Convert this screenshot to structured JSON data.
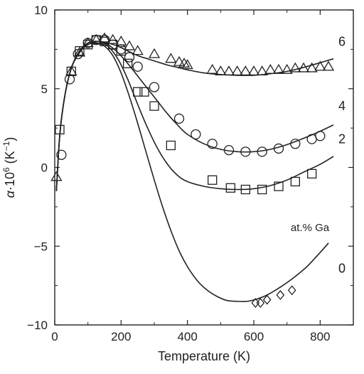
{
  "chart_data": {
    "type": "scatter",
    "xlabel": "Temperature (K)",
    "ylabel_parts": {
      "alpha": "α",
      "dot": "·10",
      "exp": "6",
      "unit": " (K",
      "unit_exp": "−1",
      "close": ")"
    },
    "xlim": [
      0,
      900
    ],
    "ylim": [
      -10,
      10
    ],
    "x_ticks": [
      0,
      200,
      400,
      600,
      800
    ],
    "y_ticks": [
      -10,
      -5,
      0,
      5,
      10
    ],
    "x_tick_labels": [
      "0",
      "200",
      "400",
      "600",
      "800"
    ],
    "y_tick_labels": [
      "−10",
      "−5",
      "0",
      "5",
      "10"
    ],
    "legend_title": "at.% Ga",
    "series": [
      {
        "name": "0",
        "marker": "diamond",
        "points": [
          [
            605,
            -8.6
          ],
          [
            620,
            -8.6
          ],
          [
            640,
            -8.4
          ],
          [
            680,
            -8.1
          ],
          [
            715,
            -7.8
          ]
        ],
        "fit": [
          [
            5,
            -1.5
          ],
          [
            15,
            2.0
          ],
          [
            30,
            4.5
          ],
          [
            50,
            6.3
          ],
          [
            75,
            7.3
          ],
          [
            100,
            7.8
          ],
          [
            125,
            7.9
          ],
          [
            150,
            7.7
          ],
          [
            175,
            7.1
          ],
          [
            200,
            6.0
          ],
          [
            225,
            4.5
          ],
          [
            250,
            2.8
          ],
          [
            275,
            1.0
          ],
          [
            300,
            -0.8
          ],
          [
            325,
            -2.5
          ],
          [
            350,
            -4.0
          ],
          [
            375,
            -5.3
          ],
          [
            400,
            -6.3
          ],
          [
            430,
            -7.2
          ],
          [
            460,
            -7.8
          ],
          [
            490,
            -8.2
          ],
          [
            520,
            -8.45
          ],
          [
            550,
            -8.5
          ],
          [
            580,
            -8.5
          ],
          [
            610,
            -8.35
          ],
          [
            640,
            -8.1
          ],
          [
            680,
            -7.6
          ],
          [
            720,
            -7.0
          ],
          [
            760,
            -6.3
          ],
          [
            800,
            -5.4
          ],
          [
            825,
            -4.8
          ]
        ]
      },
      {
        "name": "2",
        "marker": "square",
        "points": [
          [
            15,
            2.4
          ],
          [
            50,
            6.1
          ],
          [
            75,
            7.4
          ],
          [
            100,
            7.8
          ],
          [
            125,
            8.1
          ],
          [
            150,
            8.0
          ],
          [
            175,
            7.8
          ],
          [
            200,
            7.4
          ],
          [
            220,
            6.6
          ],
          [
            250,
            4.8
          ],
          [
            270,
            4.8
          ],
          [
            300,
            3.9
          ],
          [
            350,
            1.4
          ],
          [
            475,
            -0.8
          ],
          [
            530,
            -1.3
          ],
          [
            575,
            -1.4
          ],
          [
            625,
            -1.4
          ],
          [
            675,
            -1.2
          ],
          [
            725,
            -0.9
          ],
          [
            775,
            -0.4
          ]
        ],
        "fit": [
          [
            5,
            -1.5
          ],
          [
            15,
            2.0
          ],
          [
            30,
            4.5
          ],
          [
            50,
            6.3
          ],
          [
            75,
            7.4
          ],
          [
            100,
            7.9
          ],
          [
            130,
            8.0
          ],
          [
            160,
            7.7
          ],
          [
            190,
            6.9
          ],
          [
            220,
            5.6
          ],
          [
            250,
            4.0
          ],
          [
            280,
            2.5
          ],
          [
            310,
            1.2
          ],
          [
            340,
            0.2
          ],
          [
            370,
            -0.5
          ],
          [
            400,
            -0.9
          ],
          [
            450,
            -1.2
          ],
          [
            500,
            -1.35
          ],
          [
            550,
            -1.4
          ],
          [
            600,
            -1.35
          ],
          [
            650,
            -1.15
          ],
          [
            700,
            -0.8
          ],
          [
            750,
            -0.3
          ],
          [
            800,
            0.2
          ],
          [
            840,
            0.7
          ]
        ]
      },
      {
        "name": "4",
        "marker": "circle",
        "points": [
          [
            20,
            0.8
          ],
          [
            45,
            5.6
          ],
          [
            70,
            7.2
          ],
          [
            100,
            7.9
          ],
          [
            125,
            8.1
          ],
          [
            150,
            8.1
          ],
          [
            175,
            7.8
          ],
          [
            200,
            7.5
          ],
          [
            225,
            7.0
          ],
          [
            250,
            6.4
          ],
          [
            300,
            5.1
          ],
          [
            375,
            3.1
          ],
          [
            425,
            2.1
          ],
          [
            475,
            1.5
          ],
          [
            525,
            1.1
          ],
          [
            575,
            1.0
          ],
          [
            625,
            1.0
          ],
          [
            675,
            1.2
          ],
          [
            725,
            1.5
          ],
          [
            775,
            1.8
          ],
          [
            800,
            2.0
          ]
        ],
        "fit": [
          [
            5,
            -1.5
          ],
          [
            15,
            2.0
          ],
          [
            30,
            4.5
          ],
          [
            50,
            6.3
          ],
          [
            75,
            7.4
          ],
          [
            100,
            7.9
          ],
          [
            130,
            8.0
          ],
          [
            160,
            7.8
          ],
          [
            190,
            7.3
          ],
          [
            220,
            6.6
          ],
          [
            250,
            5.8
          ],
          [
            280,
            5.0
          ],
          [
            310,
            4.2
          ],
          [
            340,
            3.4
          ],
          [
            370,
            2.7
          ],
          [
            400,
            2.1
          ],
          [
            450,
            1.5
          ],
          [
            500,
            1.15
          ],
          [
            550,
            1.0
          ],
          [
            600,
            1.0
          ],
          [
            650,
            1.15
          ],
          [
            700,
            1.45
          ],
          [
            750,
            1.85
          ],
          [
            800,
            2.3
          ],
          [
            840,
            2.7
          ]
        ]
      },
      {
        "name": "6",
        "marker": "triangle",
        "points": [
          [
            5,
            -0.6
          ],
          [
            50,
            6.1
          ],
          [
            75,
            7.3
          ],
          [
            100,
            7.9
          ],
          [
            125,
            8.1
          ],
          [
            150,
            8.2
          ],
          [
            175,
            8.1
          ],
          [
            200,
            8.0
          ],
          [
            225,
            7.7
          ],
          [
            250,
            7.4
          ],
          [
            300,
            7.2
          ],
          [
            350,
            6.9
          ],
          [
            375,
            6.7
          ],
          [
            390,
            6.6
          ],
          [
            400,
            6.5
          ],
          [
            475,
            6.2
          ],
          [
            500,
            6.1
          ],
          [
            525,
            6.1
          ],
          [
            550,
            6.1
          ],
          [
            575,
            6.1
          ],
          [
            600,
            6.1
          ],
          [
            625,
            6.1
          ],
          [
            650,
            6.2
          ],
          [
            675,
            6.2
          ],
          [
            700,
            6.2
          ],
          [
            725,
            6.3
          ],
          [
            750,
            6.3
          ],
          [
            775,
            6.3
          ],
          [
            800,
            6.4
          ],
          [
            825,
            6.4
          ]
        ],
        "fit": [
          [
            5,
            -1.5
          ],
          [
            15,
            2.0
          ],
          [
            30,
            4.5
          ],
          [
            50,
            6.3
          ],
          [
            75,
            7.4
          ],
          [
            100,
            7.8
          ],
          [
            130,
            8.0
          ],
          [
            160,
            7.9
          ],
          [
            190,
            7.7
          ],
          [
            220,
            7.4
          ],
          [
            250,
            7.1
          ],
          [
            280,
            6.9
          ],
          [
            310,
            6.7
          ],
          [
            340,
            6.5
          ],
          [
            370,
            6.35
          ],
          [
            400,
            6.2
          ],
          [
            450,
            6.0
          ],
          [
            500,
            5.9
          ],
          [
            550,
            5.85
          ],
          [
            600,
            5.85
          ],
          [
            650,
            5.95
          ],
          [
            700,
            6.1
          ],
          [
            750,
            6.35
          ],
          [
            800,
            6.65
          ],
          [
            840,
            6.9
          ]
        ]
      }
    ],
    "series_labels": [
      {
        "text": "6",
        "x": 855,
        "y": 8.0
      },
      {
        "text": "4",
        "x": 855,
        "y": 3.9
      },
      {
        "text": "2",
        "x": 855,
        "y": 1.8
      },
      {
        "text": "0",
        "x": 855,
        "y": -6.4
      }
    ]
  }
}
